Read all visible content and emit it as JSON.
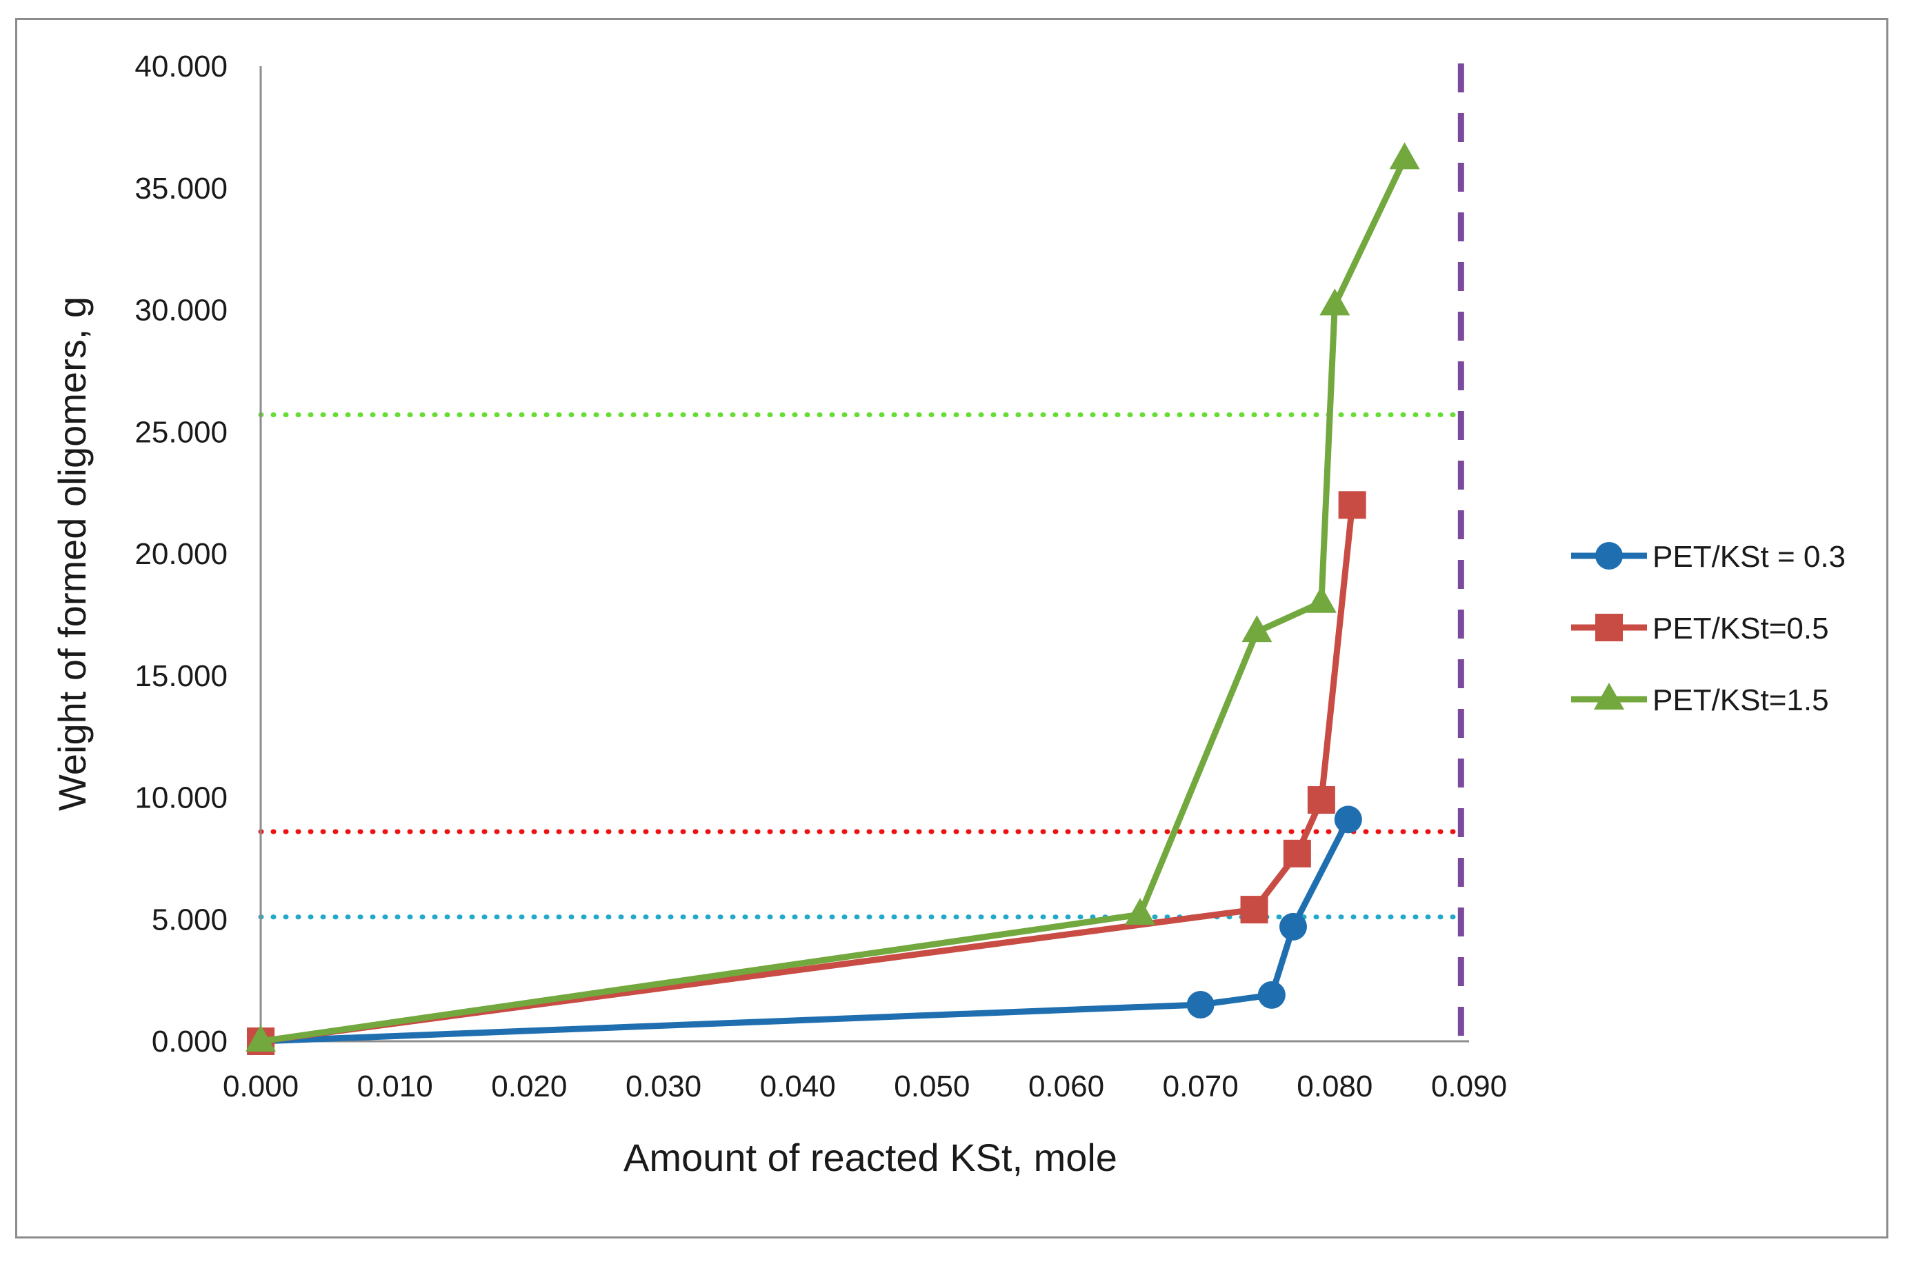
{
  "chart_data": {
    "type": "line",
    "title": "",
    "xlabel": "Amount of reacted KSt, mole",
    "ylabel": "Weight of formed oligomers, g",
    "xlim": [
      0,
      0.09
    ],
    "ylim": [
      0,
      40
    ],
    "x_ticks": [
      "0.000",
      "0.010",
      "0.020",
      "0.030",
      "0.040",
      "0.050",
      "0.060",
      "0.070",
      "0.080",
      "0.090"
    ],
    "y_ticks": [
      "0.000",
      "5.000",
      "10.000",
      "15.000",
      "20.000",
      "25.000",
      "30.000",
      "35.000",
      "40.000"
    ],
    "grid": false,
    "legend_position": "right",
    "series": [
      {
        "name": "PET/KSt = 0.3",
        "color": "#1f6fb0",
        "marker": "circle",
        "x": [
          0.0,
          0.07,
          0.0753,
          0.0769,
          0.081
        ],
        "y": [
          0.0,
          1.5,
          1.9,
          4.7,
          9.1
        ]
      },
      {
        "name": "PET/KSt=0.5",
        "color": "#c84b44",
        "marker": "square",
        "x": [
          0.0,
          0.074,
          0.0772,
          0.079,
          0.0813
        ],
        "y": [
          0.0,
          5.4,
          7.7,
          9.9,
          22.0
        ]
      },
      {
        "name": "PET/KSt=1.5",
        "color": "#72a83e",
        "marker": "triangle",
        "x": [
          0.0,
          0.0655,
          0.0742,
          0.079,
          0.08,
          0.0852
        ],
        "y": [
          0.0,
          5.2,
          16.8,
          18.0,
          30.2,
          36.2
        ]
      }
    ],
    "reference_lines": [
      {
        "orientation": "horizontal",
        "value": 25.7,
        "color": "#66dd33",
        "style": "dotted"
      },
      {
        "orientation": "horizontal",
        "value": 8.6,
        "color": "#ee1111",
        "style": "dotted"
      },
      {
        "orientation": "horizontal",
        "value": 5.1,
        "color": "#22a8c8",
        "style": "dotted"
      },
      {
        "orientation": "vertical",
        "value": 0.0894,
        "color": "#7b4a9c",
        "style": "dashed"
      }
    ]
  }
}
